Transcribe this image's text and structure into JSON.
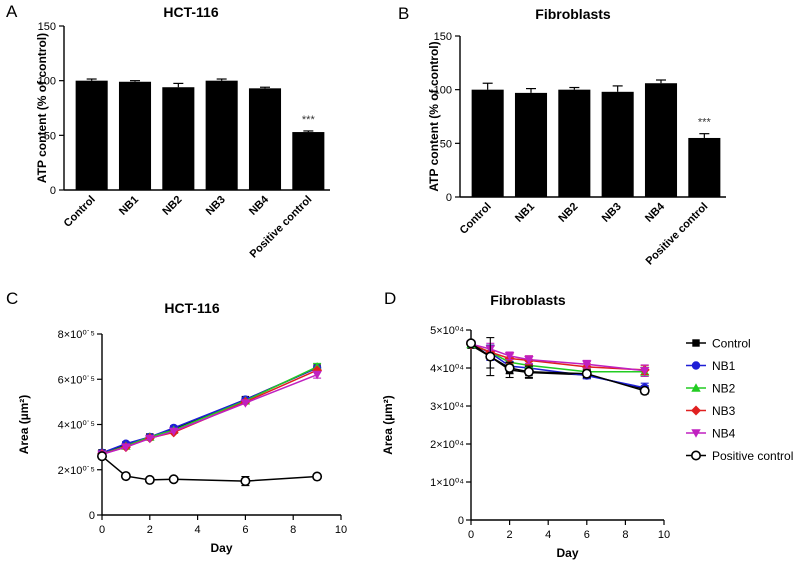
{
  "chart_data": [
    {
      "panel": "A",
      "type": "bar",
      "title": "HCT-116",
      "ylabel": "ATP content (% of control)",
      "xlabel": "",
      "ylim": [
        0,
        150
      ],
      "yticks": [
        0,
        50,
        100,
        150
      ],
      "categories": [
        "Control",
        "NB1",
        "NB2",
        "NB3",
        "NB4",
        "Positive control"
      ],
      "values": [
        100,
        99,
        94,
        100,
        93,
        53
      ],
      "errors": [
        1.5,
        1,
        3.5,
        1.5,
        1,
        1
      ],
      "annotations": [
        {
          "category": "Positive control",
          "text": "***"
        }
      ]
    },
    {
      "panel": "B",
      "type": "bar",
      "title": "Fibroblasts",
      "ylabel": "ATP content (% of control)",
      "xlabel": "",
      "ylim": [
        0,
        150
      ],
      "yticks": [
        0,
        50,
        100,
        150
      ],
      "categories": [
        "Control",
        "NB1",
        "NB2",
        "NB3",
        "NB4",
        "Positive control"
      ],
      "values": [
        100,
        97,
        100,
        98,
        106,
        55
      ],
      "errors": [
        6,
        4,
        2,
        5.5,
        3,
        4
      ],
      "annotations": [
        {
          "category": "Positive control",
          "text": "***"
        }
      ]
    },
    {
      "panel": "C",
      "type": "line",
      "title": "HCT-116",
      "xlabel": "Day",
      "ylabel": "Area (µm²)",
      "xlim": [
        0,
        10
      ],
      "ylim": [
        0,
        800000
      ],
      "xticks": [
        "0",
        "2",
        "4",
        "6",
        "8",
        "10"
      ],
      "yticks": [
        0,
        200000,
        400000,
        600000,
        800000
      ],
      "ytick_labels": [
        "0",
        "2×10⁰˙⁵",
        "4×10⁰˙⁵",
        "6×10⁰˙⁵",
        "8×10⁰˙⁵"
      ],
      "x": [
        0,
        1,
        2,
        3,
        6,
        9
      ],
      "series": [
        {
          "name": "Control",
          "values": [
            275000,
            310000,
            345000,
            380000,
            510000,
            650000
          ],
          "errors": [
            0,
            0,
            0,
            0,
            0,
            0
          ]
        },
        {
          "name": "NB1",
          "values": [
            275000,
            315000,
            345000,
            385000,
            510000,
            650000
          ],
          "errors": [
            0,
            0,
            0,
            0,
            0,
            0
          ]
        },
        {
          "name": "NB2",
          "values": [
            270000,
            305000,
            345000,
            375000,
            505000,
            655000
          ],
          "errors": [
            0,
            0,
            0,
            0,
            0,
            15000
          ]
        },
        {
          "name": "NB3",
          "values": [
            270000,
            300000,
            340000,
            365000,
            500000,
            640000
          ],
          "errors": [
            0,
            0,
            0,
            0,
            0,
            0
          ]
        },
        {
          "name": "NB4",
          "values": [
            268000,
            300000,
            338000,
            370000,
            495000,
            620000
          ],
          "errors": [
            0,
            0,
            0,
            0,
            0,
            15000
          ]
        },
        {
          "name": "Positive control",
          "values": [
            260000,
            172000,
            155000,
            158000,
            150000,
            170000
          ],
          "errors": [
            0,
            0,
            0,
            0,
            20000,
            0
          ]
        }
      ]
    },
    {
      "panel": "D",
      "type": "line",
      "title": "Fibroblasts",
      "xlabel": "Day",
      "ylabel": "Area (µm²)",
      "xlim": [
        0,
        10
      ],
      "ylim": [
        0,
        50000
      ],
      "xticks": [
        "0",
        "2",
        "4",
        "6",
        "8",
        "10"
      ],
      "yticks": [
        0,
        10000,
        20000,
        30000,
        40000,
        50000
      ],
      "ytick_labels": [
        "0",
        "1×10⁰⁴",
        "2×10⁰⁴",
        "3×10⁰⁴",
        "4×10⁰⁴",
        "5×10⁰⁴"
      ],
      "x": [
        0,
        1,
        2,
        3,
        6,
        9
      ],
      "series": [
        {
          "name": "Control",
          "values": [
            46000,
            43000,
            39500,
            38800,
            38200,
            34500
          ],
          "errors": [
            0,
            3000,
            2000,
            1500,
            1000,
            800
          ]
        },
        {
          "name": "NB1",
          "values": [
            46300,
            44000,
            40500,
            40000,
            38000,
            34800
          ],
          "errors": [
            0,
            2000,
            1200,
            1000,
            800,
            1200
          ]
        },
        {
          "name": "NB2",
          "values": [
            46200,
            44200,
            41500,
            40700,
            39000,
            39000
          ],
          "errors": [
            0,
            1500,
            1200,
            1000,
            800,
            1200
          ]
        },
        {
          "name": "NB3",
          "values": [
            46200,
            44200,
            42500,
            42000,
            40300,
            39500
          ],
          "errors": [
            0,
            1500,
            1200,
            1200,
            800,
            1200
          ]
        },
        {
          "name": "NB4",
          "values": [
            46300,
            45000,
            43200,
            42200,
            41000,
            39300
          ],
          "errors": [
            0,
            1500,
            1000,
            1000,
            1000,
            1500
          ]
        },
        {
          "name": "Positive control",
          "values": [
            46500,
            43000,
            40000,
            39000,
            38500,
            34000
          ],
          "errors": [
            0,
            5000,
            1500,
            1500,
            1000,
            800
          ]
        }
      ]
    }
  ],
  "legend": {
    "entries": [
      {
        "name": "Control",
        "color": "#000000",
        "marker": "square"
      },
      {
        "name": "NB1",
        "color": "#1f1fd6",
        "marker": "circle"
      },
      {
        "name": "NB2",
        "color": "#22cc22",
        "marker": "triangle-up"
      },
      {
        "name": "NB3",
        "color": "#e02020",
        "marker": "diamond"
      },
      {
        "name": "NB4",
        "color": "#c020c0",
        "marker": "triangle-down"
      },
      {
        "name": "Positive control",
        "color": "#000000",
        "marker": "open-circle"
      }
    ],
    "placement": "right"
  }
}
